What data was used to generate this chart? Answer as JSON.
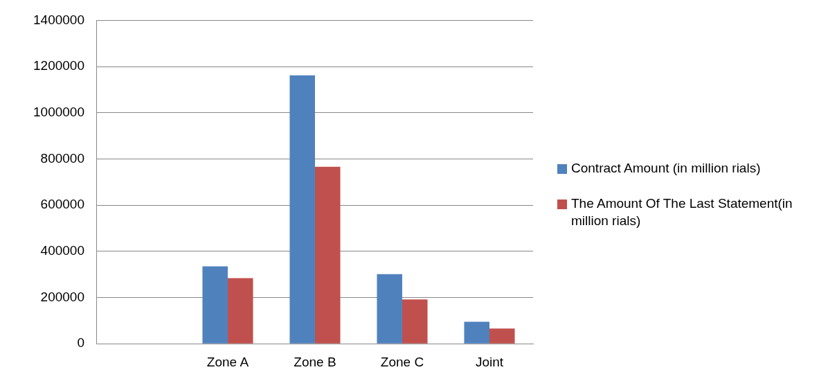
{
  "chart_data": {
    "type": "bar",
    "categories": [
      null,
      "Zone A",
      "Zone B",
      "Zone C",
      "Joint"
    ],
    "series": [
      {
        "name": "Contract Amount (in million rials)",
        "color": "#4f81bd",
        "values": [
          null,
          335000,
          1162000,
          301000,
          95000
        ]
      },
      {
        "name": "The Amount Of The Last Statement(in million rials)",
        "color": "#c0504d",
        "values": [
          null,
          284000,
          766000,
          192000,
          66000
        ]
      }
    ],
    "ylim": [
      0,
      1400000
    ],
    "yticks": [
      0,
      200000,
      400000,
      600000,
      800000,
      1000000,
      1200000,
      1400000
    ],
    "grid": "y",
    "legend": "right"
  }
}
